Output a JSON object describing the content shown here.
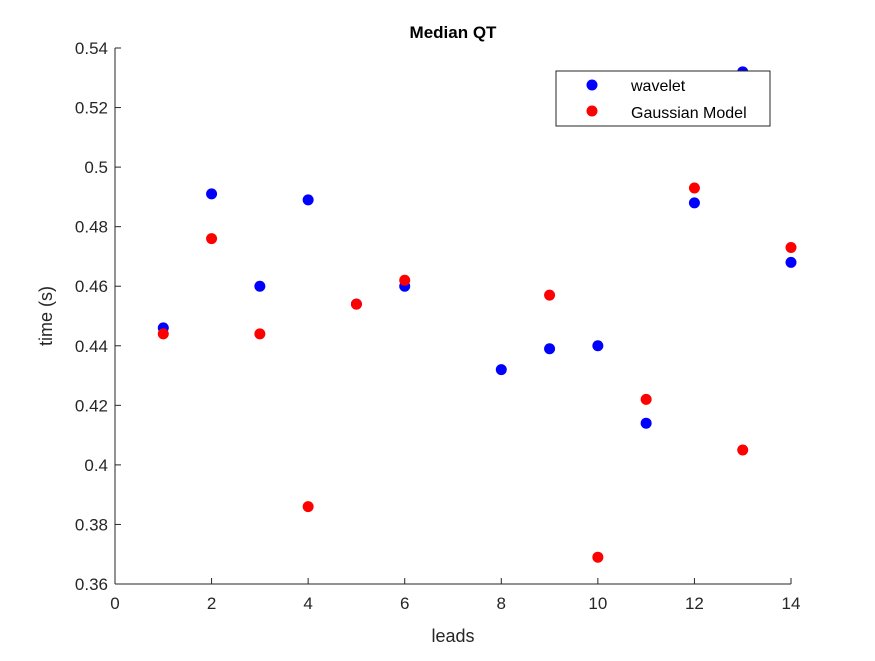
{
  "chart_data": {
    "type": "scatter",
    "title": "Median QT",
    "xlabel": "leads",
    "ylabel": "time (s)",
    "xlim": [
      0,
      14
    ],
    "ylim": [
      0.36,
      0.54
    ],
    "xticks": [
      0,
      2,
      4,
      6,
      8,
      10,
      12,
      14
    ],
    "yticks": [
      0.36,
      0.38,
      0.4,
      0.42,
      0.44,
      0.46,
      0.48,
      0.5,
      0.52,
      0.54
    ],
    "xtick_labels": [
      "0",
      "2",
      "4",
      "6",
      "8",
      "10",
      "12",
      "14"
    ],
    "ytick_labels": [
      "0.36",
      "0.38",
      "0.4",
      "0.42",
      "0.44",
      "0.46",
      "0.48",
      "0.5",
      "0.52",
      "0.54"
    ],
    "grid": false,
    "legend_position": "top-right",
    "series": [
      {
        "name": "wavelet",
        "color": "#0000ff",
        "x": [
          1,
          2,
          3,
          4,
          5,
          6,
          8,
          9,
          10,
          11,
          12,
          13,
          14
        ],
        "y": [
          0.446,
          0.491,
          0.46,
          0.489,
          0.454,
          0.46,
          0.432,
          0.439,
          0.44,
          0.414,
          0.488,
          0.532,
          0.468
        ]
      },
      {
        "name": "Gaussian Model",
        "color": "#ff0000",
        "x": [
          1,
          2,
          3,
          4,
          5,
          6,
          9,
          10,
          11,
          12,
          13,
          14
        ],
        "y": [
          0.444,
          0.476,
          0.444,
          0.386,
          0.454,
          0.462,
          0.457,
          0.369,
          0.422,
          0.493,
          0.405,
          0.473
        ]
      }
    ]
  }
}
